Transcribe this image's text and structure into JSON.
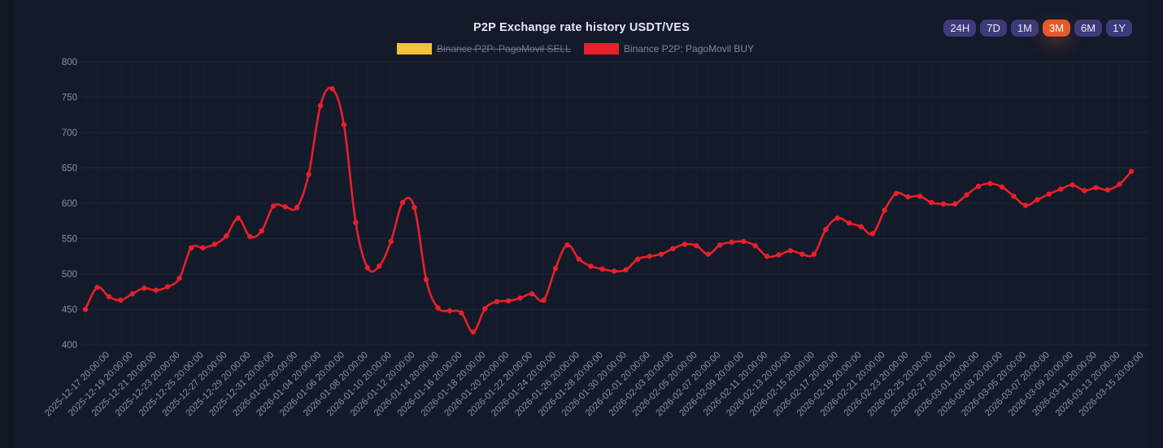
{
  "colors": {
    "buy": "#e8202a",
    "sell": "#f5c13a",
    "active_range": "#e45a2a",
    "range_button": "#3e3b7c"
  },
  "range_buttons": [
    {
      "label": "24H",
      "active": false
    },
    {
      "label": "7D",
      "active": false
    },
    {
      "label": "1M",
      "active": false
    },
    {
      "label": "3M",
      "active": true
    },
    {
      "label": "6M",
      "active": false
    },
    {
      "label": "1Y",
      "active": false
    }
  ],
  "chart_data": {
    "type": "line",
    "title": "P2P Exchange rate history USDT/VES",
    "legend": [
      {
        "name": "Binance P2P: PagoMovil SELL",
        "color": "#f5c13a",
        "hidden": true
      },
      {
        "name": "Binance P2P: PagoMovil BUY",
        "color": "#e8202a",
        "hidden": false
      }
    ],
    "ylim": [
      400,
      800
    ],
    "yticks": [
      400,
      450,
      500,
      550,
      600,
      650,
      700,
      750,
      800
    ],
    "grid": true,
    "x_tick_labels": [
      "2025-12-17 20:00:00",
      "2025-12-19 20:00:00",
      "2025-12-21 20:00:00",
      "2025-12-23 20:00:00",
      "2025-12-25 20:00:00",
      "2025-12-27 20:00:00",
      "2025-12-29 20:00:00",
      "2025-12-31 20:00:00",
      "2026-01-02 20:00:00",
      "2026-01-04 20:00:00",
      "2026-01-06 20:00:00",
      "2026-01-08 20:00:00",
      "2026-01-10 20:00:00",
      "2026-01-12 20:00:00",
      "2026-01-14 20:00:00",
      "2026-01-16 20:00:00",
      "2026-01-18 20:00:00",
      "2026-01-20 20:00:00",
      "2026-01-22 20:00:00",
      "2026-01-24 20:00:00",
      "2026-01-26 20:00:00",
      "2026-01-28 20:00:00",
      "2026-01-30 20:00:00",
      "2026-02-01 20:00:00",
      "2026-02-03 20:00:00",
      "2026-02-05 20:00:00",
      "2026-02-07 20:00:00",
      "2026-02-09 20:00:00",
      "2026-02-11 20:00:00",
      "2026-02-13 20:00:00",
      "2026-02-15 20:00:00",
      "2026-02-17 20:00:00",
      "2026-02-19 20:00:00",
      "2026-02-21 20:00:00",
      "2026-02-23 20:00:00",
      "2026-02-25 20:00:00",
      "2026-02-27 20:00:00",
      "2026-03-01 20:00:00",
      "2026-03-03 20:00:00",
      "2026-03-05 20:00:00",
      "2026-03-07 20:00:00",
      "2026-03-09 20:00:00",
      "2026-03-11 20:00:00",
      "2026-03-13 20:00:00",
      "2026-03-15 20:00:00"
    ],
    "series": [
      {
        "name": "Binance P2P: PagoMovil BUY",
        "values": [
          450,
          481,
          468,
          463,
          472,
          480,
          477,
          482,
          494,
          537,
          537,
          542,
          554,
          579,
          553,
          561,
          596,
          595,
          594,
          641,
          738,
          762,
          711,
          573,
          509,
          511,
          546,
          601,
          594,
          492,
          452,
          448,
          445,
          418,
          451,
          461,
          462,
          466,
          472,
          463,
          508,
          541,
          521,
          511,
          507,
          504,
          506,
          521,
          525,
          528,
          536,
          542,
          540,
          528,
          541,
          545,
          546,
          540,
          525,
          527,
          533,
          528,
          528,
          563,
          579,
          572,
          567,
          557,
          590,
          614,
          609,
          610,
          601,
          599,
          599,
          612,
          624,
          628,
          623,
          610,
          597,
          605,
          613,
          620,
          626,
          618,
          622,
          619,
          627,
          645
        ]
      }
    ]
  }
}
